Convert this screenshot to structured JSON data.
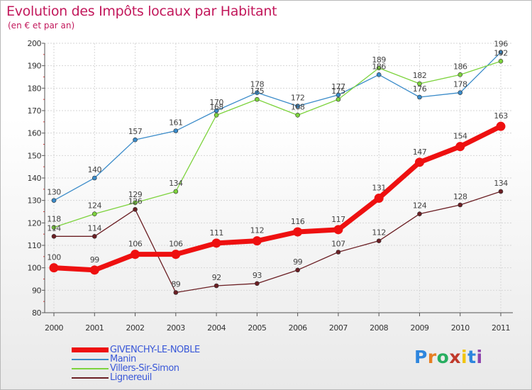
{
  "title": "Evolution des Impôts locaux par Habitant",
  "subtitle": "(en € et par an)",
  "logo": {
    "text": "Proxiti",
    "letters": [
      "P",
      "r",
      "o",
      "x",
      "i",
      "t",
      "i"
    ],
    "colors": [
      "#2e86de",
      "#e67e22",
      "#27ae60",
      "#c0392b",
      "#f1c40f",
      "#2e86de",
      "#8e44ad"
    ]
  },
  "chart_data": {
    "type": "line",
    "title": "Evolution des Impôts locaux par Habitant",
    "subtitle": "(en € et par an)",
    "categories": [
      "2000",
      "2001",
      "2002",
      "2003",
      "2004",
      "2005",
      "2006",
      "2007",
      "2008",
      "2009",
      "2010",
      "2011"
    ],
    "ylim": [
      80,
      200
    ],
    "yticks": [
      80,
      90,
      100,
      110,
      120,
      130,
      140,
      150,
      160,
      170,
      180,
      190,
      200
    ],
    "grid": true,
    "legend_position": "bottom-left",
    "series": [
      {
        "name": "Manin",
        "color": "#3a8bc9",
        "values": [
          130,
          140,
          157,
          161,
          170,
          178,
          172,
          177,
          186,
          176,
          178,
          196
        ],
        "labels": [
          "130",
          "140",
          "157",
          "161",
          "170",
          "178",
          "172",
          "177",
          "186",
          "176",
          "178",
          "196"
        ]
      },
      {
        "name": "Villers-Sir-Simon",
        "color": "#7dd33d",
        "values": [
          118,
          124,
          129,
          134,
          168,
          175,
          168,
          175,
          189,
          182,
          186,
          192
        ],
        "labels": [
          "118",
          "124",
          "129",
          "134",
          "168",
          "175",
          "168",
          "175",
          "189",
          "182",
          "186",
          "192"
        ]
      },
      {
        "name": "Lignereuil",
        "color": "#6b1f24",
        "values": [
          114,
          114,
          126,
          89,
          92,
          93,
          99,
          107,
          112,
          124,
          128,
          134
        ],
        "labels": [
          "114",
          "114",
          "126",
          "89",
          "92",
          "93",
          "99",
          "107",
          "112",
          "124",
          "128",
          "134"
        ]
      },
      {
        "name": "GIVENCHY-LE-NOBLE",
        "color": "#ee1010",
        "values": [
          100,
          99,
          106,
          106,
          111,
          112,
          116,
          117,
          131,
          147,
          154,
          163
        ],
        "labels": [
          "100",
          "99",
          "106",
          "106",
          "111",
          "112",
          "116",
          "117",
          "131",
          "147",
          "154",
          "163"
        ]
      }
    ],
    "legend": [
      {
        "name": "GIVENCHY-LE-NOBLE",
        "color": "#ee1010",
        "weight": "thick"
      },
      {
        "name": "Manin",
        "color": "#3a8bc9",
        "weight": "thin"
      },
      {
        "name": "Villers-Sir-Simon",
        "color": "#7dd33d",
        "weight": "thin"
      },
      {
        "name": "Lignereuil",
        "color": "#6b1f24",
        "weight": "thin"
      }
    ]
  }
}
